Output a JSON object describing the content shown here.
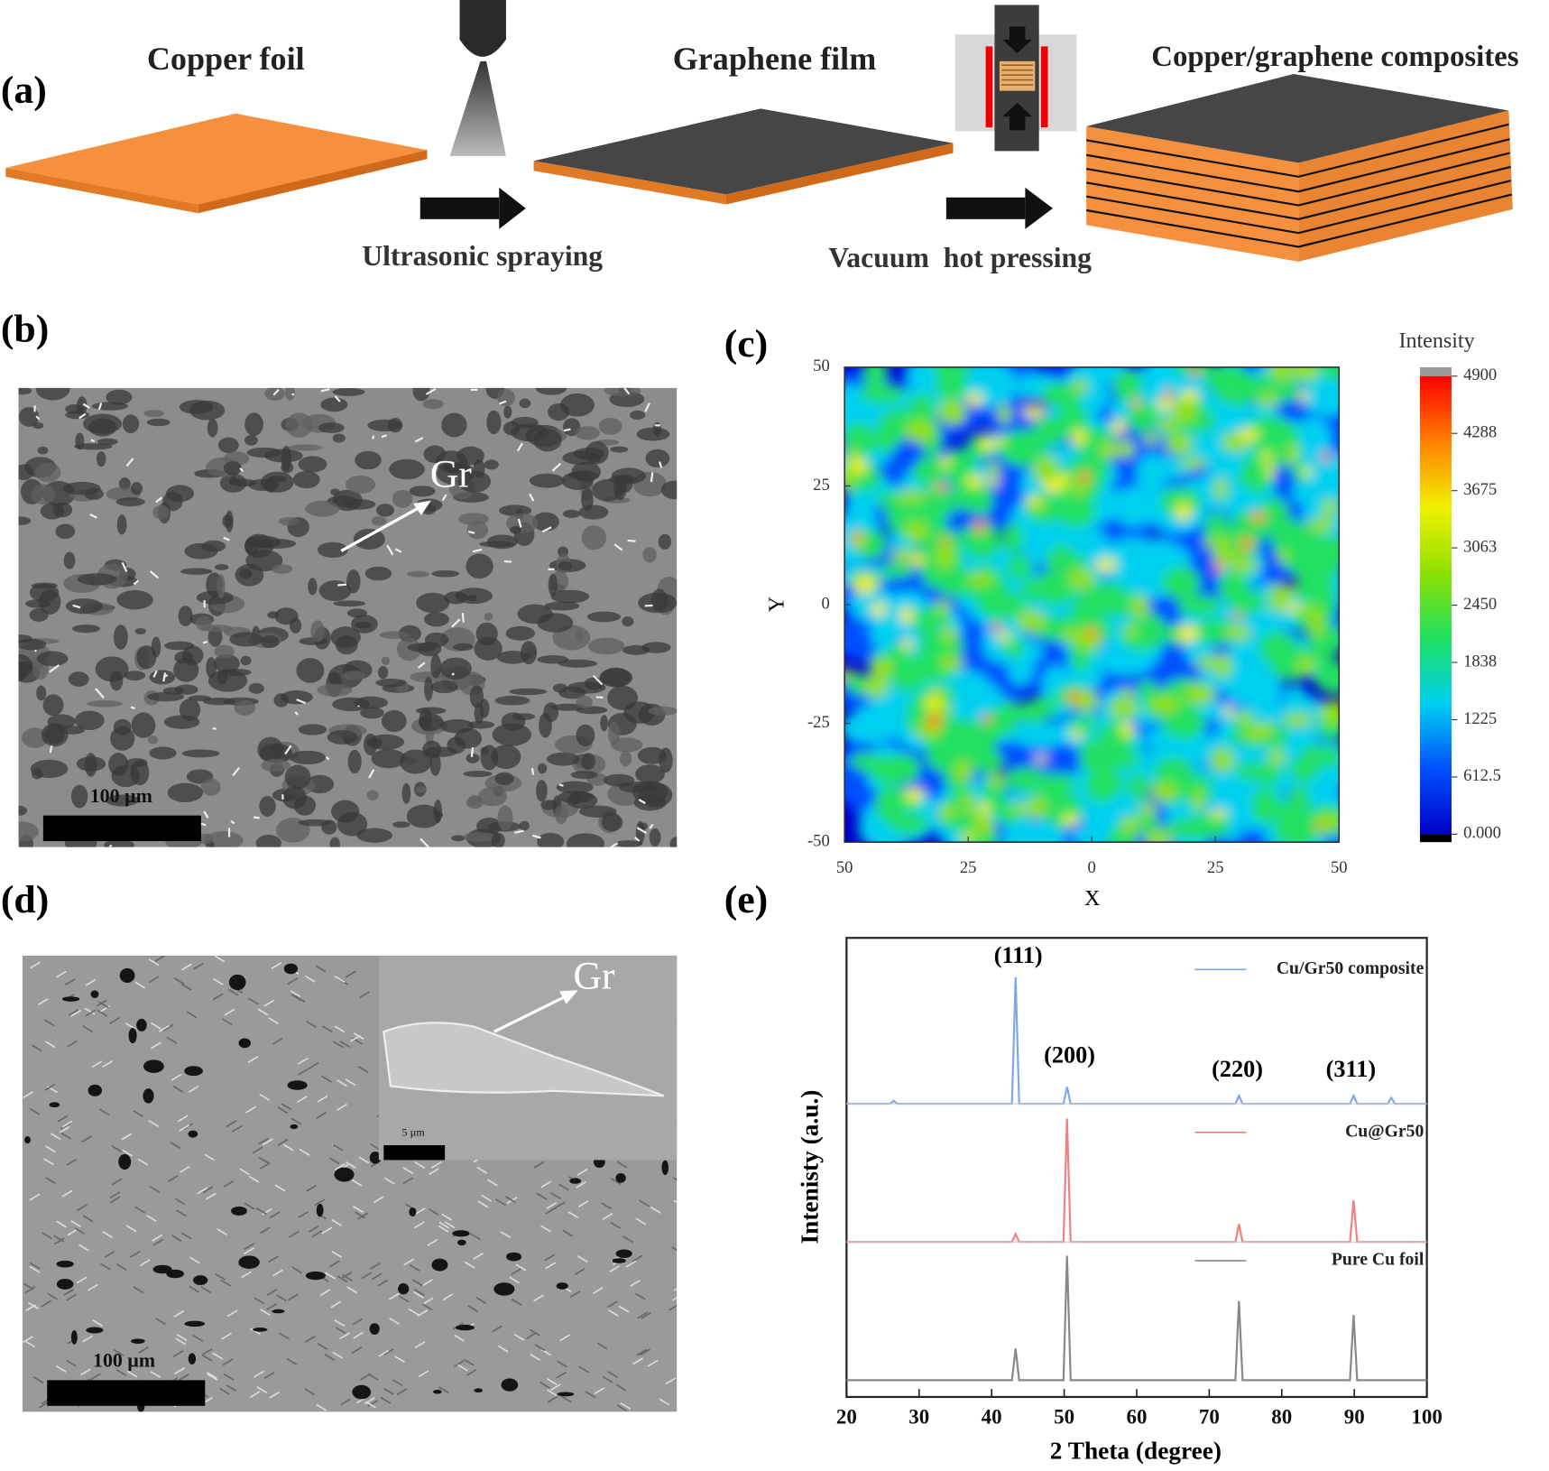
{
  "panel_labels": [
    "(a)",
    "(b)",
    "(c)",
    "(d)",
    "(e)"
  ],
  "schematic": {
    "steps": [
      "Copper foil",
      "Graphene film",
      "Copper/graphene composites"
    ],
    "processes": [
      "Ultrasonic spraying",
      "Vacuum  hot pressing"
    ]
  },
  "sem_b": {
    "annotation": "Gr",
    "scale_bar": "100 µm"
  },
  "sem_d": {
    "annotation": "Gr",
    "scale_bar": "100 µm",
    "inset_scale_bar": "5 µm"
  },
  "chart_data": [
    {
      "type": "contour",
      "x_label": "X",
      "y_label": "Y",
      "xlim": [
        -50,
        50
      ],
      "ylim": [
        -50,
        50
      ],
      "xticks": [
        {
          "value": -50,
          "label": "50"
        },
        {
          "value": -25,
          "label": "25"
        },
        0,
        25,
        50
      ],
      "yticks": [
        -50,
        -25,
        0,
        25,
        50
      ],
      "colorbar": {
        "title": "Intensity",
        "clim": [
          0,
          4900
        ],
        "ticks": [
          {
            "value": 0,
            "label": "0.000"
          },
          612.5,
          1225,
          1838,
          2450,
          3063,
          3675,
          4288,
          4900
        ],
        "colors": [
          "#0000c8",
          "#0050ff",
          "#00d0f0",
          "#20e060",
          "#90e000",
          "#f0f000",
          "#ff8000",
          "#ff0000"
        ]
      }
    },
    {
      "type": "line",
      "x_label": "2 Theta (degree)",
      "y_label": "Intenisty (a.u.)",
      "xlim": [
        20,
        100
      ],
      "xticks": [
        20,
        30,
        40,
        50,
        60,
        70,
        80,
        90,
        100
      ],
      "ylim": [
        0,
        140
      ],
      "x": [
        20,
        26.0,
        26.5,
        27.0,
        42.8,
        43.3,
        43.8,
        49.9,
        50.4,
        50.9,
        73.6,
        74.1,
        74.6,
        89.4,
        89.9,
        90.4,
        94.6,
        95.1,
        95.6,
        100
      ],
      "series": [
        {
          "name": "Cu/Gr50 composite",
          "color": "#7fa7e8",
          "values": [
            0,
            0,
            3,
            0,
            0,
            128,
            0,
            0,
            17,
            0,
            0,
            8,
            0,
            0,
            8,
            0,
            0,
            6,
            0,
            0
          ]
        },
        {
          "name": "Cu@Gr50",
          "color": "#f08080",
          "values": [
            0,
            0,
            0,
            0,
            0,
            8,
            0,
            0,
            125,
            0,
            0,
            18,
            0,
            0,
            42,
            0,
            0,
            0,
            0,
            0
          ]
        },
        {
          "name": "Pure Cu foil",
          "color": "#888888",
          "values": [
            0,
            0,
            0,
            0,
            0,
            32,
            0,
            0,
            126,
            0,
            0,
            80,
            0,
            0,
            66,
            0,
            0,
            0,
            0,
            0
          ]
        }
      ],
      "annotations": [
        "(111)",
        "(200)",
        "(220)",
        "(311)"
      ]
    }
  ]
}
